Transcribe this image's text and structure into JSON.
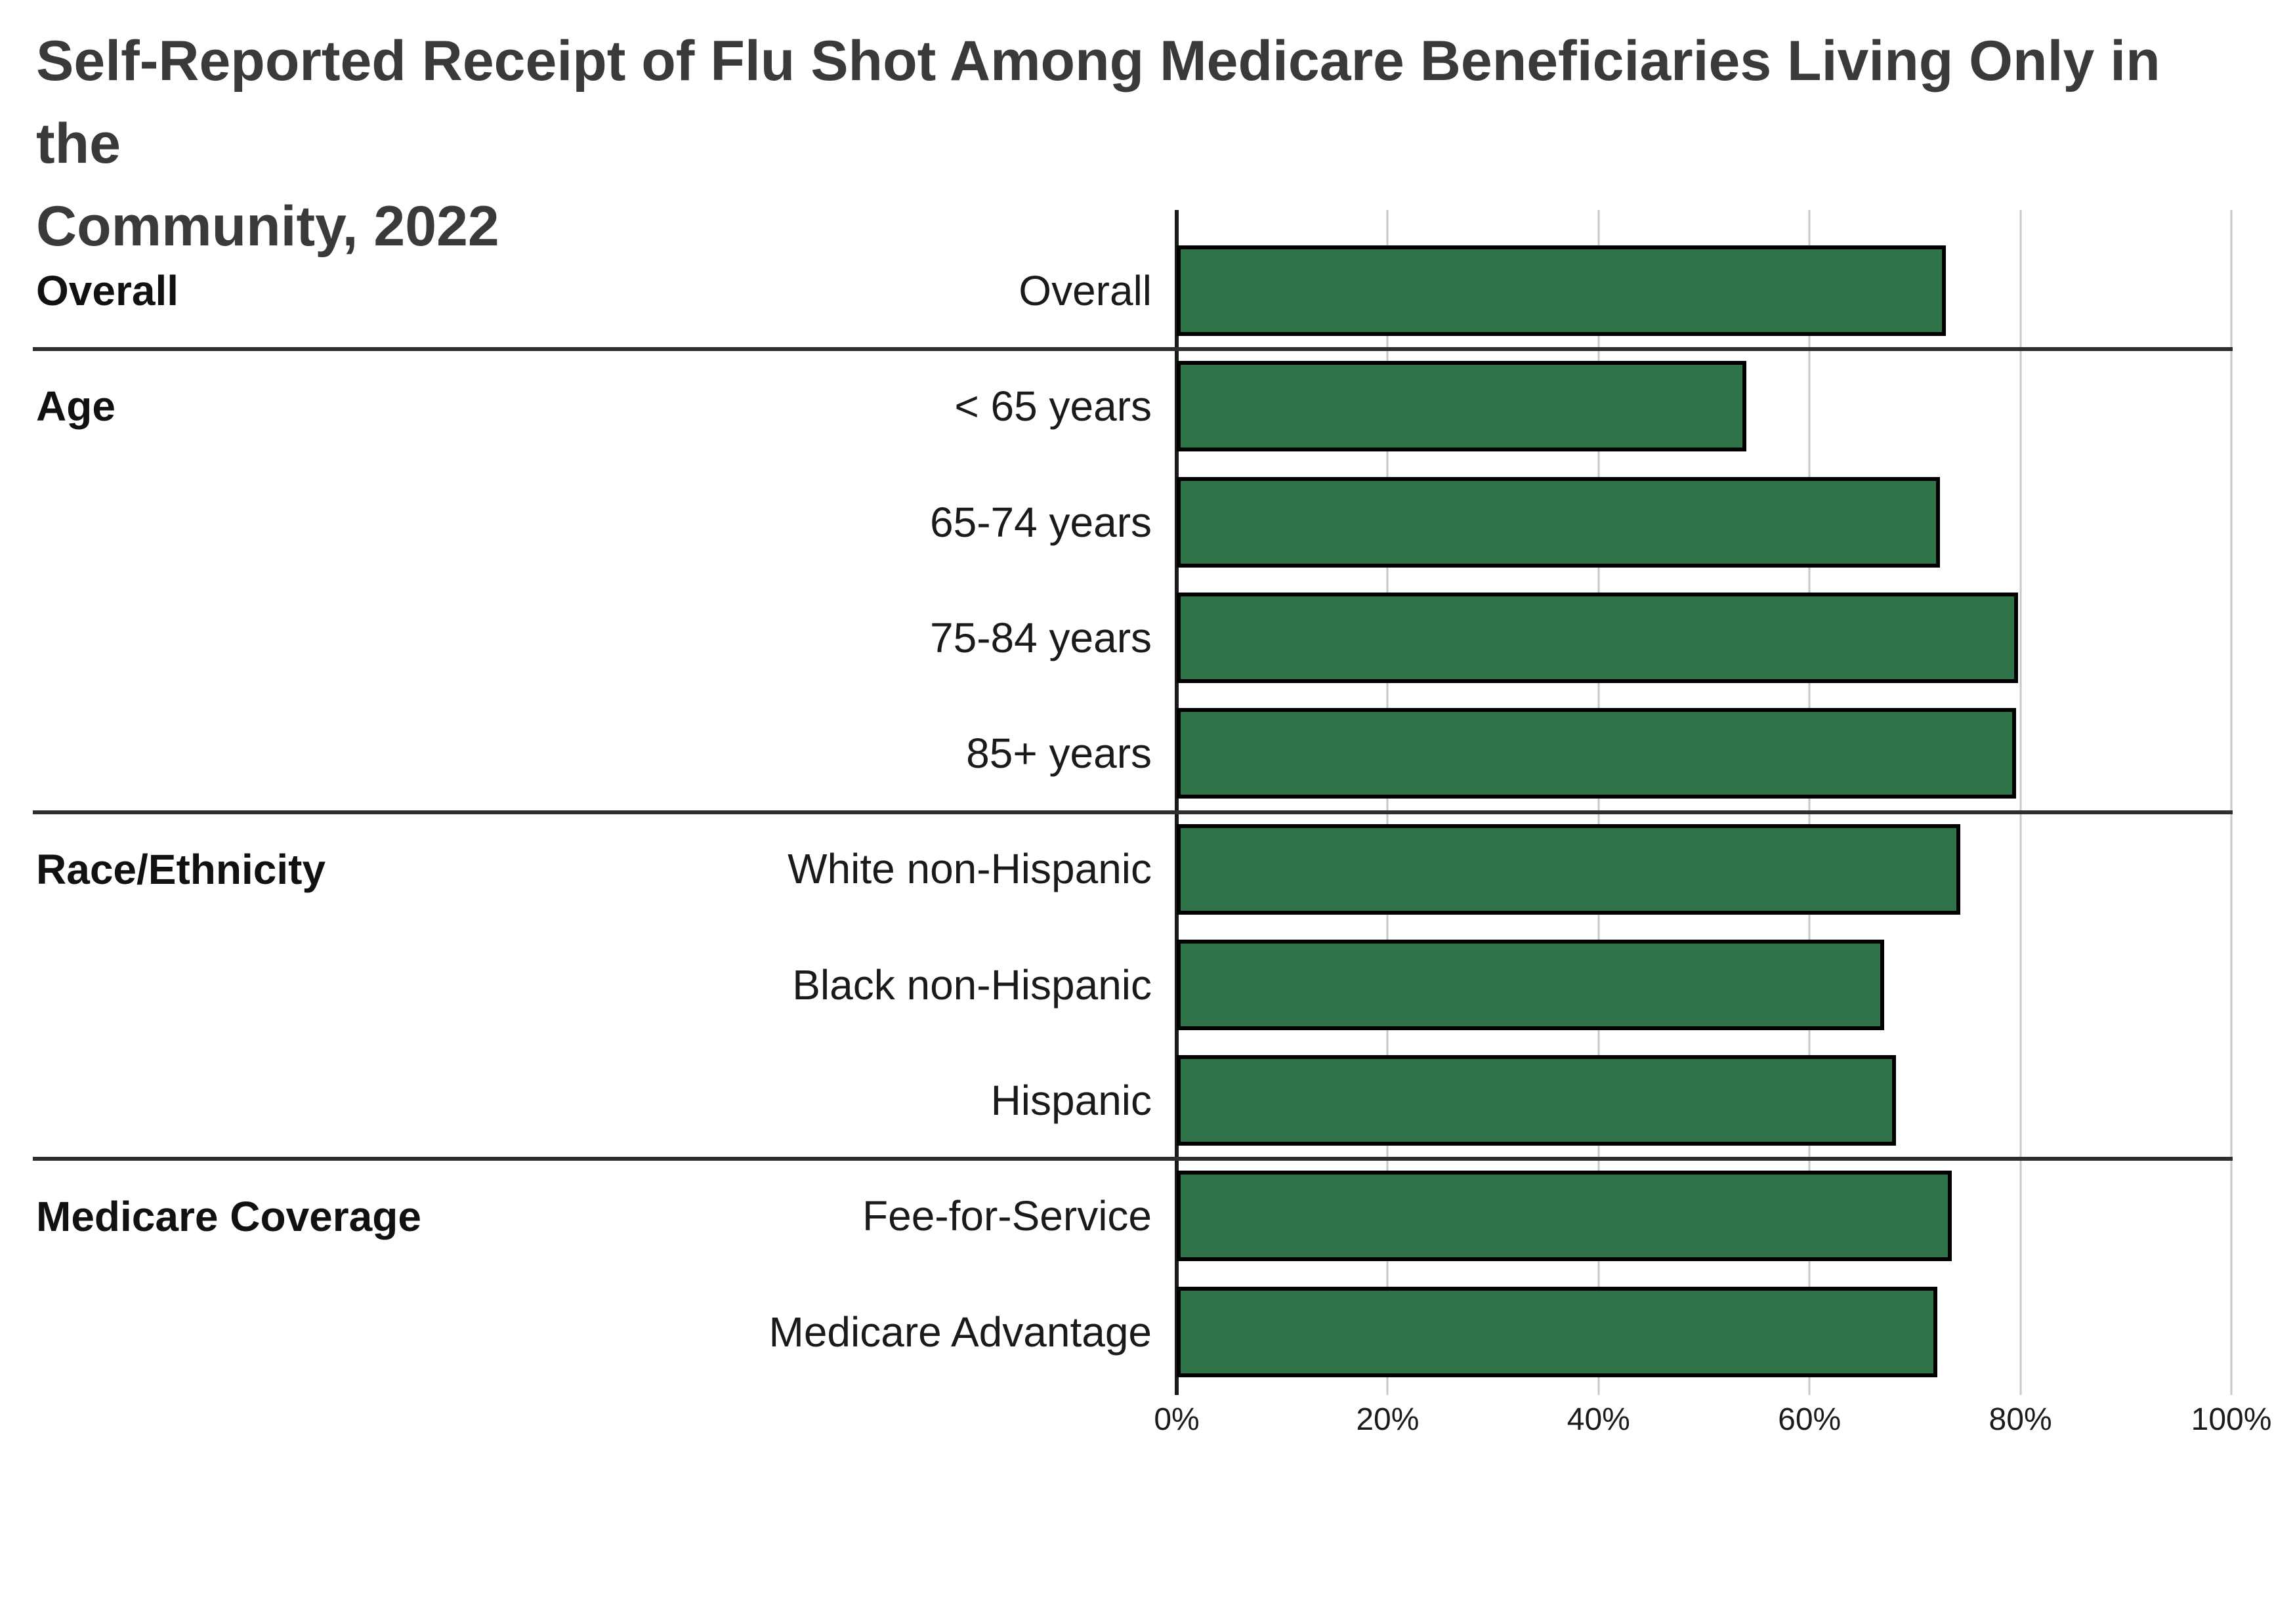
{
  "title": {
    "line1": "Self-Reported Receipt of Flu Shot Among Medicare Beneficiaries Living Only in the",
    "line2": "Community, 2022"
  },
  "chart_data": {
    "type": "bar",
    "orientation": "horizontal",
    "title": "Self-Reported Receipt of Flu Shot Among Medicare Beneficiaries Living Only in the Community, 2022",
    "xlabel": "",
    "ylabel": "",
    "xlim": [
      0,
      100
    ],
    "x_ticks": [
      "0%",
      "20%",
      "40%",
      "60%",
      "80%",
      "100%"
    ],
    "x_tick_values": [
      0,
      20,
      40,
      60,
      80,
      100
    ],
    "grid": true,
    "legend": "none",
    "bar_color": "#2f7449",
    "bar_border_color": "#000000",
    "gridline_color": "#c9c9c9",
    "axis_color": "#1a1a1a",
    "sections": [
      {
        "label": "Overall",
        "rows": [
          {
            "label": "Overall",
            "value": 72.9
          }
        ]
      },
      {
        "label": "Age",
        "rows": [
          {
            "label": "< 65 years",
            "value": 54.0
          },
          {
            "label": "65-74 years",
            "value": 72.4
          },
          {
            "label": "75-84 years",
            "value": 79.8
          },
          {
            "label": "85+ years",
            "value": 79.6
          }
        ]
      },
      {
        "label": "Race/Ethnicity",
        "rows": [
          {
            "label": "White non-Hispanic",
            "value": 74.3
          },
          {
            "label": "Black non-Hispanic",
            "value": 67.1
          },
          {
            "label": "Hispanic",
            "value": 68.2
          }
        ]
      },
      {
        "label": "Medicare Coverage",
        "rows": [
          {
            "label": "Fee-for-Service",
            "value": 73.5
          },
          {
            "label": "Medicare Advantage",
            "value": 72.1
          }
        ]
      }
    ]
  }
}
